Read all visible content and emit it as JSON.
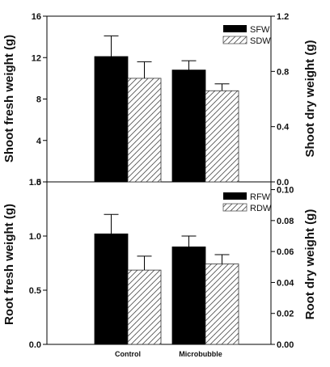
{
  "colors": {
    "fresh": "#000000",
    "dry_hatch": "#555555",
    "axis": "#000000"
  },
  "chart_data": [
    {
      "type": "bar",
      "panel": "top",
      "categories": [
        "Control",
        "Microbubble"
      ],
      "ylabel": "Shoot fresh weight (g)",
      "y2label": "Shoot dry weight (g)",
      "ylim": [
        0,
        16
      ],
      "y2lim": [
        0,
        1.2
      ],
      "yticks": [
        0,
        4,
        8,
        12,
        16
      ],
      "y2ticks": [
        0.0,
        0.4,
        0.8,
        1.2
      ],
      "ytick_labels": [
        "0",
        "4",
        "8",
        "12",
        "16"
      ],
      "y2tick_labels": [
        "0.0",
        "0.4",
        "0.8",
        "1.2"
      ],
      "grid": false,
      "legend": "top-right",
      "series": [
        {
          "name": "SFW",
          "axis": "left",
          "style": "solid",
          "values": [
            12.1,
            10.8
          ],
          "errors": [
            2.0,
            0.9
          ]
        },
        {
          "name": "SDW",
          "axis": "right",
          "style": "hatched",
          "values": [
            0.75,
            0.66
          ],
          "errors": [
            0.12,
            0.05
          ]
        }
      ]
    },
    {
      "type": "bar",
      "panel": "bottom",
      "categories": [
        "Control",
        "Microbubble"
      ],
      "ylabel": "Root fresh weight (g)",
      "y2label": "Root dry weight (g)",
      "ylim": [
        0,
        1.5
      ],
      "y2lim": [
        0,
        0.105
      ],
      "yticks": [
        0,
        0.5,
        1.0,
        1.5
      ],
      "y2ticks": [
        0.0,
        0.02,
        0.04,
        0.06,
        0.08,
        0.1
      ],
      "ytick_labels": [
        "0.0",
        "0.5",
        "1.0",
        "1.5"
      ],
      "y2tick_labels": [
        "0.00",
        "0.02",
        "0.04",
        "0.06",
        "0.08",
        "0.10"
      ],
      "grid": false,
      "legend": "top-right",
      "series": [
        {
          "name": "RFW",
          "axis": "left",
          "style": "solid",
          "values": [
            1.02,
            0.9
          ],
          "errors": [
            0.18,
            0.1
          ]
        },
        {
          "name": "RDW",
          "axis": "right",
          "style": "hatched",
          "values": [
            0.048,
            0.052
          ],
          "errors": [
            0.009,
            0.006
          ]
        }
      ]
    }
  ]
}
